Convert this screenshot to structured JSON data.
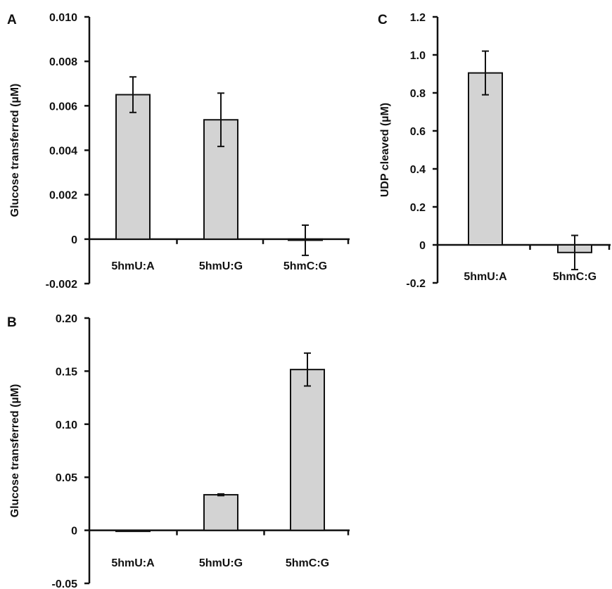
{
  "chart_data": [
    {
      "panel": "A",
      "type": "bar",
      "categories": [
        "5hmU:A",
        "5hmU:G",
        "5hmC:G"
      ],
      "values": [
        0.0065,
        0.00537,
        -5e-05
      ],
      "errors": [
        0.0008,
        0.0012,
        0.00068
      ],
      "ylabel": "Glucose transferred (µM)",
      "ylim": [
        -0.002,
        0.01
      ],
      "yticks": [
        -0.002,
        0,
        0.002,
        0.004,
        0.006,
        0.008,
        0.01
      ],
      "ytick_labels": [
        "-0.002",
        "0",
        "0.002",
        "0.004",
        "0.006",
        "0.008",
        "0.010"
      ],
      "bar_color": "#d3d3d3",
      "grid": false
    },
    {
      "panel": "B",
      "type": "bar",
      "categories": [
        "5hmU:A",
        "5hmU:G",
        "5hmC:G"
      ],
      "values": [
        0.0,
        0.0335,
        0.1515
      ],
      "errors": [
        0.0,
        0.0008,
        0.0155
      ],
      "ylabel": "Glucose transferred (µM)",
      "ylim": [
        -0.05,
        0.2
      ],
      "yticks": [
        -0.05,
        0,
        0.05,
        0.1,
        0.15,
        0.2
      ],
      "ytick_labels": [
        "-0.05",
        "0",
        "0.05",
        "0.10",
        "0.15",
        "0.20"
      ],
      "bar_color": "#d3d3d3",
      "grid": false
    },
    {
      "panel": "C",
      "type": "bar",
      "categories": [
        "5hmU:A",
        "5hmC:G"
      ],
      "values": [
        0.905,
        -0.04
      ],
      "errors": [
        0.115,
        0.09
      ],
      "ylabel": "UDP cleaved (µM)",
      "ylim": [
        -0.2,
        1.2
      ],
      "yticks": [
        -0.2,
        0,
        0.2,
        0.4,
        0.6,
        0.8,
        1.0,
        1.2
      ],
      "ytick_labels": [
        "-0.2",
        "0",
        "0.2",
        "0.4",
        "0.6",
        "0.8",
        "1.0",
        "1.2"
      ],
      "bar_color": "#d3d3d3",
      "grid": false
    }
  ]
}
